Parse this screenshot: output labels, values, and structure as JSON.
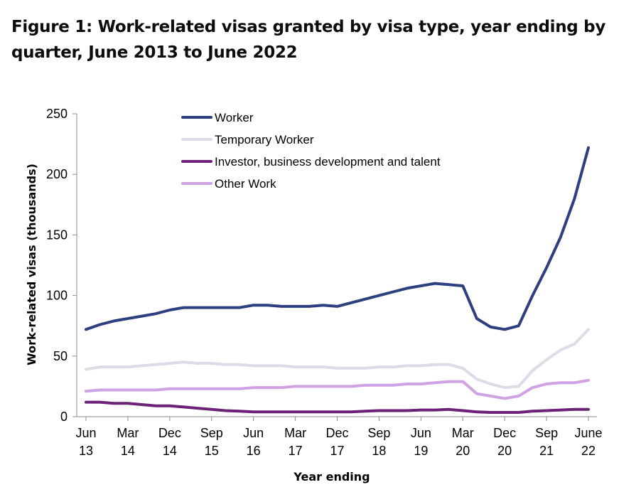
{
  "figure_title": "Figure 1: Work-related visas granted by visa type, year ending by quarter, June 2013 to June 2022",
  "chart_data": {
    "type": "line",
    "xlabel": "Year ending",
    "ylabel": "Work-related visas (thousands)",
    "ylim": [
      0,
      250
    ],
    "yticks": [
      0,
      50,
      100,
      150,
      200,
      250
    ],
    "grid": false,
    "legend_position": "top-left",
    "x": [
      "Jun 13",
      "Sep 13",
      "Dec 13",
      "Mar 14",
      "Jun 14",
      "Sep 14",
      "Dec 14",
      "Mar 15",
      "Jun 15",
      "Sep 15",
      "Dec 15",
      "Mar 16",
      "Jun 16",
      "Sep 16",
      "Dec 16",
      "Mar 17",
      "Jun 17",
      "Sep 17",
      "Dec 17",
      "Mar 18",
      "Jun 18",
      "Sep 18",
      "Dec 18",
      "Mar 19",
      "Jun 19",
      "Sep 19",
      "Dec 19",
      "Mar 20",
      "Jun 20",
      "Sep 20",
      "Dec 20",
      "Mar 21",
      "Jun 21",
      "Sep 21",
      "Dec 21",
      "Mar 22",
      "June 22"
    ],
    "x_tick_labels": [
      {
        "index": 0,
        "line1": "Jun",
        "line2": "13"
      },
      {
        "index": 3,
        "line1": "Mar",
        "line2": "14"
      },
      {
        "index": 6,
        "line1": "Dec",
        "line2": "14"
      },
      {
        "index": 9,
        "line1": "Sep",
        "line2": "15"
      },
      {
        "index": 12,
        "line1": "Jun",
        "line2": "16"
      },
      {
        "index": 15,
        "line1": "Mar",
        "line2": "17"
      },
      {
        "index": 18,
        "line1": "Dec",
        "line2": "17"
      },
      {
        "index": 21,
        "line1": "Sep",
        "line2": "18"
      },
      {
        "index": 24,
        "line1": "Jun",
        "line2": "19"
      },
      {
        "index": 27,
        "line1": "Mar",
        "line2": "20"
      },
      {
        "index": 30,
        "line1": "Dec",
        "line2": "20"
      },
      {
        "index": 33,
        "line1": "Sep",
        "line2": "21"
      },
      {
        "index": 36,
        "line1": "June",
        "line2": "22"
      }
    ],
    "series": [
      {
        "name": "Worker",
        "color": "#2e3f7f",
        "values": [
          72,
          76,
          79,
          81,
          83,
          85,
          88,
          90,
          90,
          90,
          90,
          90,
          92,
          92,
          91,
          91,
          91,
          92,
          91,
          94,
          97,
          100,
          103,
          106,
          108,
          110,
          109,
          108,
          81,
          74,
          72,
          75,
          100,
          123,
          148,
          180,
          222
        ]
      },
      {
        "name": "Temporary Worker",
        "color": "#dcdbe6",
        "values": [
          39,
          41,
          41,
          41,
          42,
          43,
          44,
          45,
          44,
          44,
          43,
          43,
          42,
          42,
          42,
          41,
          41,
          41,
          40,
          40,
          40,
          41,
          41,
          42,
          42,
          43,
          43,
          40,
          31,
          27,
          24,
          25,
          38,
          47,
          55,
          60,
          72
        ]
      },
      {
        "name": "Investor, business development and talent",
        "color": "#6b2277",
        "values": [
          12,
          12,
          11,
          11,
          10,
          9,
          9,
          8,
          7,
          6,
          5,
          4.5,
          4,
          4,
          4,
          4,
          4,
          4,
          4,
          4,
          4.5,
          5,
          5,
          5,
          5.5,
          5.5,
          6,
          5,
          4,
          3.5,
          3.5,
          3.5,
          4.5,
          5,
          5.5,
          6,
          6
        ]
      },
      {
        "name": "Other Work",
        "color": "#cfa2e3",
        "values": [
          21,
          22,
          22,
          22,
          22,
          22,
          23,
          23,
          23,
          23,
          23,
          23,
          24,
          24,
          24,
          25,
          25,
          25,
          25,
          25,
          26,
          26,
          26,
          27,
          27,
          28,
          29,
          29,
          19,
          17,
          15,
          17,
          24,
          27,
          28,
          28,
          30
        ]
      }
    ]
  }
}
